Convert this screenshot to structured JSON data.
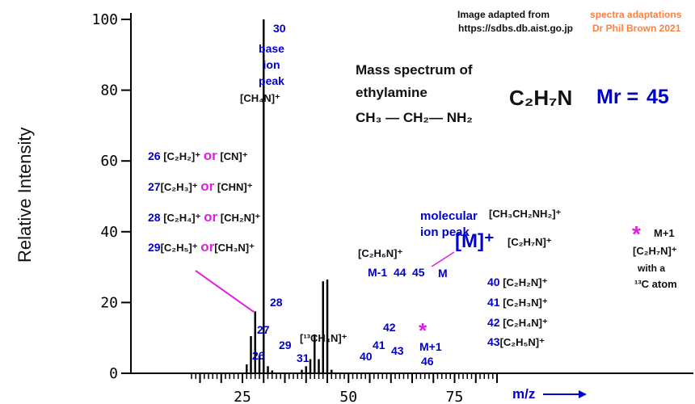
{
  "credit": {
    "source_line1": "Image adapted from",
    "source_line2": "https://sdbs.db.aist.go.jp",
    "author_line1": "spectra adaptations",
    "author_line2": "Dr Phil Brown 2021"
  },
  "heading": {
    "line1": "Mass spectrum of",
    "line2": "ethylamine",
    "structure": "CH₃ — CH₂— NH₂",
    "molecular_formula": "C₂H₇N",
    "mr_label": "Mr =",
    "mr_value": "45"
  },
  "chart_data": {
    "type": "bar",
    "xlabel": "m/z",
    "ylabel": "Relative Intensity",
    "xlim": [
      15,
      84
    ],
    "ylim": [
      0,
      100
    ],
    "x_ticks": [
      25,
      50,
      75
    ],
    "y_ticks": [
      0,
      20,
      40,
      60,
      80,
      100
    ],
    "peaks": [
      {
        "mz": 26,
        "intensity": 2.5
      },
      {
        "mz": 27,
        "intensity": 10.5
      },
      {
        "mz": 28,
        "intensity": 17.5
      },
      {
        "mz": 29,
        "intensity": 5
      },
      {
        "mz": 30,
        "intensity": 100
      },
      {
        "mz": 31,
        "intensity": 2
      },
      {
        "mz": 32,
        "intensity": 0.8
      },
      {
        "mz": 39,
        "intensity": 1
      },
      {
        "mz": 40,
        "intensity": 2
      },
      {
        "mz": 41,
        "intensity": 4
      },
      {
        "mz": 42,
        "intensity": 11
      },
      {
        "mz": 43,
        "intensity": 4
      },
      {
        "mz": 44,
        "intensity": 26
      },
      {
        "mz": 45,
        "intensity": 26.5
      },
      {
        "mz": 46,
        "intensity": 1
      }
    ],
    "peak_labels": [
      "26",
      "27",
      "28",
      "29",
      "30",
      "31",
      "40",
      "41",
      "42",
      "43",
      "44",
      "45",
      "46"
    ],
    "base_peak_label": "base ion peak",
    "base_peak_ion": "[CH₄N]⁺",
    "isotope_peak_ion": "[¹³CH₄N]⁺",
    "m_minus_1_label": "M-1",
    "m_minus_1_ion": "[C₂H₆N]⁺",
    "m_label": "M",
    "m_plus_1_label": "M+1",
    "molecular_ion_text": "molecular ion peak",
    "molecular_ion_symbol": "[M]⁺",
    "molecular_ion_formula1": "[CH₃CH₂NH₂]⁺",
    "molecular_ion_formula2": "[C₂H₇N]⁺",
    "assignments_left": [
      {
        "mz": "26",
        "ion1": "[C₂H₂]⁺",
        "or": "or",
        "ion2": "[CN]⁺"
      },
      {
        "mz": "27",
        "ion1": "[C₂H₃]⁺",
        "or": "or",
        "ion2": "[CHN]⁺"
      },
      {
        "mz": "28",
        "ion1": "[C₂H₄]⁺",
        "or": "or",
        "ion2": "[CH₂N]⁺"
      },
      {
        "mz": "29",
        "ion1": "[C₂H₅]⁺",
        "or": "or",
        "ion2": "[CH₃N]⁺"
      }
    ],
    "assignments_right": [
      {
        "mz": "40",
        "ion": "[C₂H₂N]⁺"
      },
      {
        "mz": "41",
        "ion": "[C₂H₃N]⁺"
      },
      {
        "mz": "42",
        "ion": "[C₂H₄N]⁺"
      },
      {
        "mz": "43",
        "ion": "[C₂H₅N]⁺"
      }
    ],
    "m_plus_1_note": {
      "symbol": "*",
      "label": "M+1",
      "ion": "[C₂H₇N]⁺",
      "line2": "with a",
      "line3": "¹³C  atom"
    },
    "colors": {
      "peaks": "#000000",
      "labels": "#0000cc",
      "highlight": "#e020e0",
      "credit": "#ff8040"
    }
  }
}
